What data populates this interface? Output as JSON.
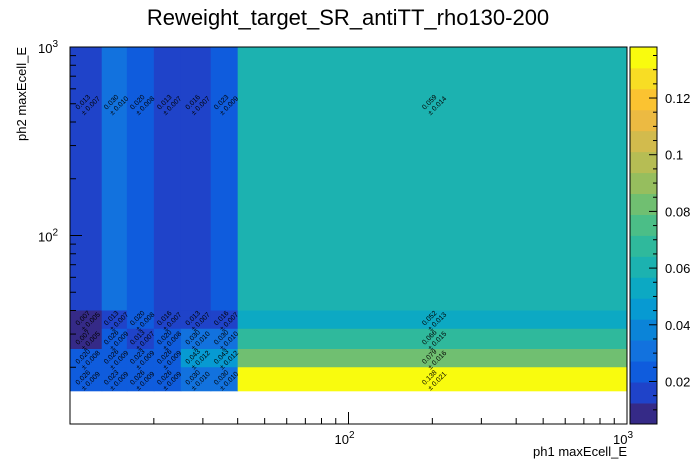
{
  "chart_data": {
    "type": "heatmap",
    "title": "Reweight_target_SR_antiTT_rho130-200",
    "xlabel": "ph1 maxEcell_E",
    "ylabel": "ph2 maxEcell_E",
    "x_scale": "log",
    "y_scale": "log",
    "xlim": [
      10,
      1000
    ],
    "ylim": [
      10,
      1000
    ],
    "x_bins": [
      10,
      13,
      16,
      20,
      25,
      32,
      40,
      1000
    ],
    "y_bins": [
      10,
      15,
      20,
      25,
      32,
      40,
      1000
    ],
    "x_tick_labels": [
      {
        "value": 100,
        "base": "10",
        "exp": "2"
      },
      {
        "value": 1000,
        "base": "10",
        "exp": "3"
      }
    ],
    "y_tick_labels": [
      {
        "value": 100,
        "base": "10",
        "exp": "2"
      },
      {
        "value": 1000,
        "base": "10",
        "exp": "3"
      }
    ],
    "z_range": [
      0.005,
      0.138
    ],
    "z_tick_labels": [
      "0.02",
      "0.04",
      "0.06",
      "0.08",
      "0.1",
      "0.12"
    ],
    "z_tick_values": [
      0.02,
      0.04,
      0.06,
      0.08,
      0.1,
      0.12
    ],
    "colors": [
      "#352a87",
      "#1f43c9",
      "#0f5cdd",
      "#1272de",
      "#0b84d8",
      "#079ad2",
      "#0ca9c3",
      "#1cb2b0",
      "#2fb99c",
      "#4bbe87",
      "#70bf71",
      "#96be5e",
      "#b6bd54",
      "#d2bb4d",
      "#ecba42",
      "#fbc331",
      "#f8dd24",
      "#f9fb0e"
    ],
    "cells": [
      {
        "i": 0,
        "j": 5,
        "value": 0.013,
        "label": "0.013",
        "err": "± 0.007"
      },
      {
        "i": 1,
        "j": 5,
        "value": 0.03,
        "label": "0.030",
        "err": "± 0.010"
      },
      {
        "i": 2,
        "j": 5,
        "value": 0.02,
        "label": "0.020",
        "err": "± 0.008"
      },
      {
        "i": 3,
        "j": 5,
        "value": 0.013,
        "label": "0.013",
        "err": "± 0.007"
      },
      {
        "i": 4,
        "j": 5,
        "value": 0.016,
        "label": "0.016",
        "err": "± 0.007"
      },
      {
        "i": 5,
        "j": 5,
        "value": 0.023,
        "label": "0.023",
        "err": "± 0.009"
      },
      {
        "i": 6,
        "j": 5,
        "value": 0.059,
        "label": "0.059",
        "err": "± 0.014"
      },
      {
        "i": 0,
        "j": 4,
        "value": 0.007,
        "label": "0.007",
        "err": "± 0.005"
      },
      {
        "i": 1,
        "j": 4,
        "value": 0.013,
        "label": "0.013",
        "err": "± 0.007"
      },
      {
        "i": 2,
        "j": 4,
        "value": 0.02,
        "label": "0.020",
        "err": "± 0.008"
      },
      {
        "i": 3,
        "j": 4,
        "value": 0.016,
        "label": "0.016",
        "err": "± 0.007"
      },
      {
        "i": 4,
        "j": 4,
        "value": 0.013,
        "label": "0.013",
        "err": "± 0.007"
      },
      {
        "i": 5,
        "j": 4,
        "value": 0.016,
        "label": "0.016",
        "err": "± 0.007"
      },
      {
        "i": 6,
        "j": 4,
        "value": 0.052,
        "label": "0.052",
        "err": "± 0.013"
      },
      {
        "i": 0,
        "j": 3,
        "value": 0.007,
        "label": "0.007",
        "err": "± 0.005"
      },
      {
        "i": 1,
        "j": 3,
        "value": 0.026,
        "label": "0.026",
        "err": "± 0.009"
      },
      {
        "i": 2,
        "j": 3,
        "value": 0.013,
        "label": "0.013",
        "err": "± 0.007"
      },
      {
        "i": 3,
        "j": 3,
        "value": 0.02,
        "label": "0.020",
        "err": "± 0.008"
      },
      {
        "i": 4,
        "j": 3,
        "value": 0.03,
        "label": "0.030",
        "err": "± 0.010"
      },
      {
        "i": 5,
        "j": 3,
        "value": 0.03,
        "label": "0.030",
        "err": "± 0.010"
      },
      {
        "i": 6,
        "j": 3,
        "value": 0.066,
        "label": "0.066",
        "err": "± 0.015"
      },
      {
        "i": 0,
        "j": 2,
        "value": 0.02,
        "label": "0.020",
        "err": "± 0.008"
      },
      {
        "i": 1,
        "j": 2,
        "value": 0.026,
        "label": "0.026",
        "err": "± 0.009"
      },
      {
        "i": 2,
        "j": 2,
        "value": 0.023,
        "label": "0.023",
        "err": "± 0.009"
      },
      {
        "i": 3,
        "j": 2,
        "value": 0.026,
        "label": "0.026",
        "err": "± 0.009"
      },
      {
        "i": 4,
        "j": 2,
        "value": 0.043,
        "label": "0.043",
        "err": "± 0.012"
      },
      {
        "i": 5,
        "j": 2,
        "value": 0.043,
        "label": "0.043",
        "err": "± 0.012"
      },
      {
        "i": 6,
        "j": 2,
        "value": 0.079,
        "label": "0.079",
        "err": "± 0.016"
      },
      {
        "i": 0,
        "j": 1,
        "value": 0.026,
        "label": "0.026",
        "err": "± 0.009"
      },
      {
        "i": 1,
        "j": 1,
        "value": 0.023,
        "label": "0.023",
        "err": "± 0.009"
      },
      {
        "i": 2,
        "j": 1,
        "value": 0.026,
        "label": "0.026",
        "err": "± 0.009"
      },
      {
        "i": 3,
        "j": 1,
        "value": 0.026,
        "label": "0.026",
        "err": "± 0.009"
      },
      {
        "i": 4,
        "j": 1,
        "value": 0.03,
        "label": "0.030",
        "err": "± 0.010"
      },
      {
        "i": 5,
        "j": 1,
        "value": 0.03,
        "label": "0.030",
        "err": "± 0.010"
      },
      {
        "i": 6,
        "j": 1,
        "value": 0.138,
        "label": "0.138",
        "err": "± 0.021"
      }
    ]
  }
}
